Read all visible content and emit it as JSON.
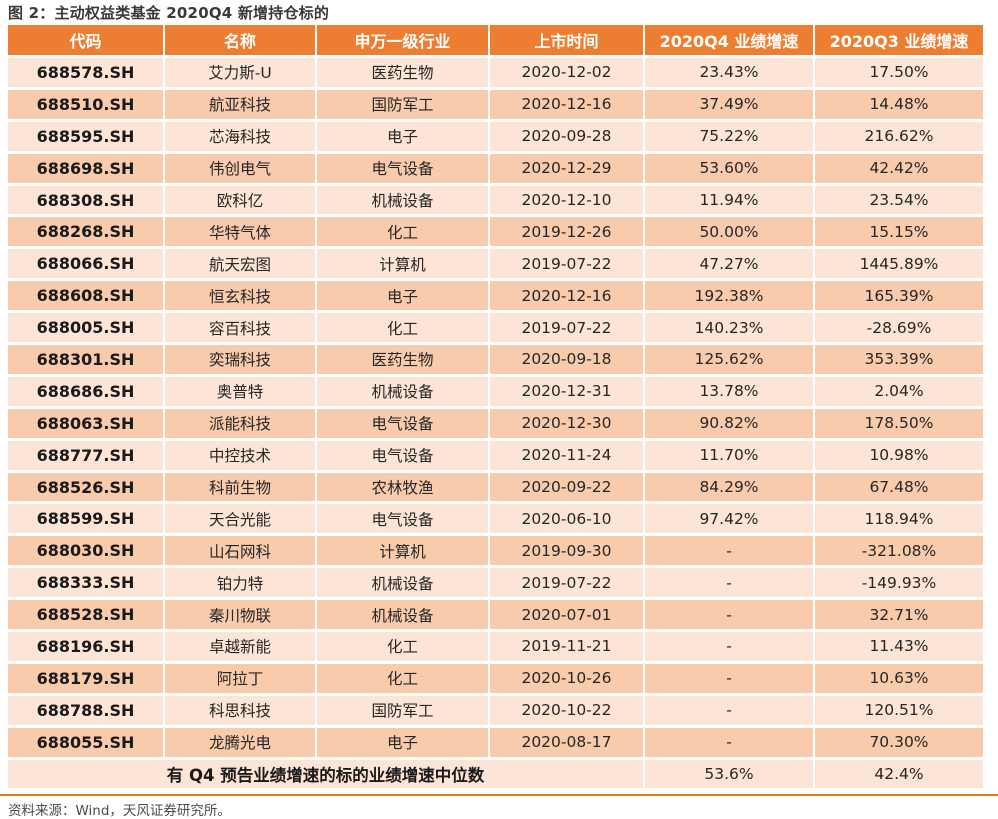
{
  "title": "图 2：主动权益类基金 2020Q4 新增持仓标的",
  "colors": {
    "header_bg": "#ED7D31",
    "row_light": "#FCE4D6",
    "row_dark": "#F8CBAD",
    "accent_line": "#E87722",
    "header_text": "#FFFFFF",
    "body_text": "#262626",
    "title_text": "#3A3A3A"
  },
  "table": {
    "columns": [
      "代码",
      "名称",
      "申万一级行业",
      "上市时间",
      "2020Q4 业绩增速",
      "2020Q3 业绩增速"
    ],
    "column_keys": [
      "code",
      "name",
      "industry",
      "list-date",
      "q4-growth",
      "q3-growth"
    ],
    "rows": [
      [
        "688578.SH",
        "艾力斯-U",
        "医药生物",
        "2020-12-02",
        "23.43%",
        "17.50%"
      ],
      [
        "688510.SH",
        "航亚科技",
        "国防军工",
        "2020-12-16",
        "37.49%",
        "14.48%"
      ],
      [
        "688595.SH",
        "芯海科技",
        "电子",
        "2020-09-28",
        "75.22%",
        "216.62%"
      ],
      [
        "688698.SH",
        "伟创电气",
        "电气设备",
        "2020-12-29",
        "53.60%",
        "42.42%"
      ],
      [
        "688308.SH",
        "欧科亿",
        "机械设备",
        "2020-12-10",
        "11.94%",
        "23.54%"
      ],
      [
        "688268.SH",
        "华特气体",
        "化工",
        "2019-12-26",
        "50.00%",
        "15.15%"
      ],
      [
        "688066.SH",
        "航天宏图",
        "计算机",
        "2019-07-22",
        "47.27%",
        "1445.89%"
      ],
      [
        "688608.SH",
        "恒玄科技",
        "电子",
        "2020-12-16",
        "192.38%",
        "165.39%"
      ],
      [
        "688005.SH",
        "容百科技",
        "化工",
        "2019-07-22",
        "140.23%",
        "-28.69%"
      ],
      [
        "688301.SH",
        "奕瑞科技",
        "医药生物",
        "2020-09-18",
        "125.62%",
        "353.39%"
      ],
      [
        "688686.SH",
        "奥普特",
        "机械设备",
        "2020-12-31",
        "13.78%",
        "2.04%"
      ],
      [
        "688063.SH",
        "派能科技",
        "电气设备",
        "2020-12-30",
        "90.82%",
        "178.50%"
      ],
      [
        "688777.SH",
        "中控技术",
        "电气设备",
        "2020-11-24",
        "11.70%",
        "10.98%"
      ],
      [
        "688526.SH",
        "科前生物",
        "农林牧渔",
        "2020-09-22",
        "84.29%",
        "67.48%"
      ],
      [
        "688599.SH",
        "天合光能",
        "电气设备",
        "2020-06-10",
        "97.42%",
        "118.94%"
      ],
      [
        "688030.SH",
        "山石网科",
        "计算机",
        "2019-09-30",
        "-",
        "-321.08%"
      ],
      [
        "688333.SH",
        "铂力特",
        "机械设备",
        "2019-07-22",
        "-",
        "-149.93%"
      ],
      [
        "688528.SH",
        "秦川物联",
        "机械设备",
        "2020-07-01",
        "-",
        "32.71%"
      ],
      [
        "688196.SH",
        "卓越新能",
        "化工",
        "2019-11-21",
        "-",
        "11.43%"
      ],
      [
        "688179.SH",
        "阿拉丁",
        "化工",
        "2020-10-26",
        "-",
        "10.63%"
      ],
      [
        "688788.SH",
        "科思科技",
        "国防军工",
        "2020-10-22",
        "-",
        "120.51%"
      ],
      [
        "688055.SH",
        "龙腾光电",
        "电子",
        "2020-08-17",
        "-",
        "70.30%"
      ]
    ],
    "summary": {
      "label": "有 Q4 预告业绩增速的标的业绩增速中位数",
      "q4": "53.6%",
      "q3": "42.4%"
    }
  },
  "footer": {
    "source": "资料来源：Wind，天风证券研究所。"
  }
}
